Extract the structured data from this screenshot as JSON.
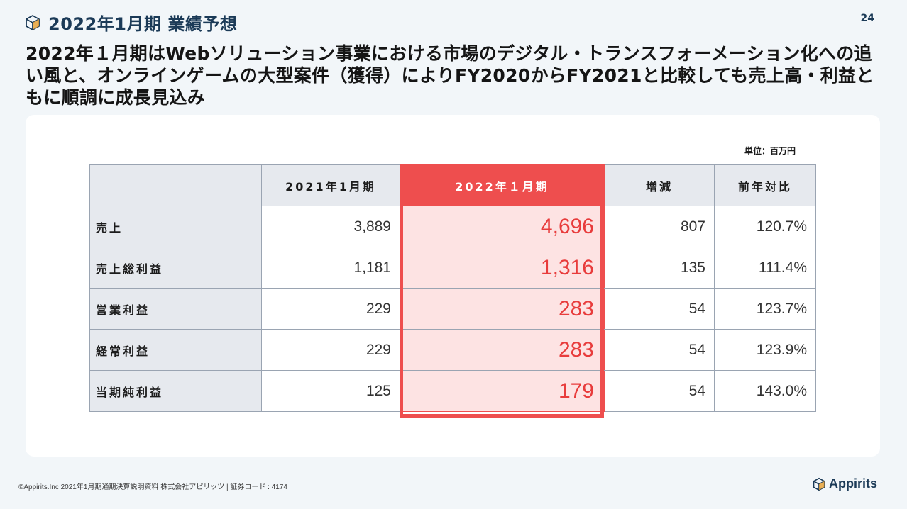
{
  "header": {
    "title": "2022年1月期 業績予想",
    "page_number": "24"
  },
  "headline": "2022年１月期はWebソリューション事業における市場のデジタル・トランスフォーメーション化への追い風と、オンラインゲームの大型案件（獲得）によりFY2020からFY2021と比較しても売上高・利益ともに順調に成長見込み",
  "unit_label": "単位：百万円",
  "table": {
    "columns": [
      "",
      "2021年1月期",
      "2022年１月期",
      "増減",
      "前年対比"
    ],
    "rows": [
      {
        "label": "売上",
        "prev": "3,889",
        "forecast": "4,696",
        "change": "807",
        "ratio": "120.7%"
      },
      {
        "label": "売上総利益",
        "prev": "1,181",
        "forecast": "1,316",
        "change": "135",
        "ratio": "111.4%"
      },
      {
        "label": "営業利益",
        "prev": "229",
        "forecast": "283",
        "change": "54",
        "ratio": "123.7%"
      },
      {
        "label": "経常利益",
        "prev": "229",
        "forecast": "283",
        "change": "54",
        "ratio": "123.9%"
      },
      {
        "label": "当期純利益",
        "prev": "125",
        "forecast": "179",
        "change": "54",
        "ratio": "143.0%"
      }
    ]
  },
  "footer": {
    "text": "©Appirits.Inc 2021年1月期通期決算説明資料 株式会社アピリッツ | 証券コード : 4174",
    "logo_text": "Appirits"
  },
  "colors": {
    "accent": "#ee4e4e",
    "accent_light": "#fde3e3",
    "brand": "#1b3a57"
  }
}
